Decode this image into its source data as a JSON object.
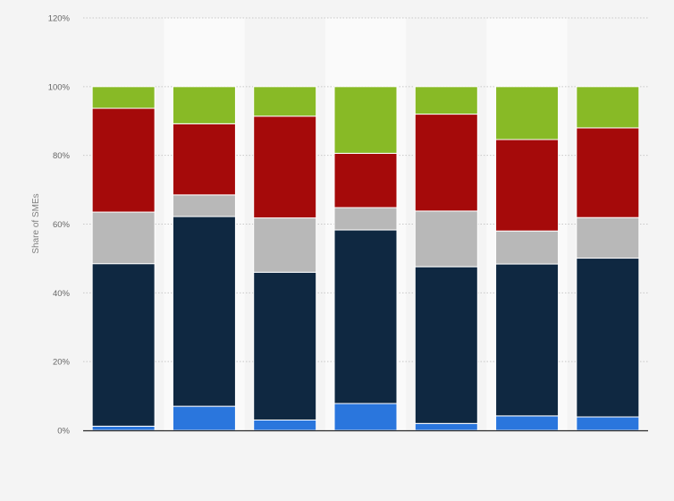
{
  "chart_data": {
    "type": "bar",
    "stacked": true,
    "title": "",
    "xlabel": "",
    "ylabel": "Share of SMEs",
    "ylim": [
      0,
      120
    ],
    "y_ticks": [
      "0%",
      "20%",
      "40%",
      "60%",
      "80%",
      "100%",
      "120%"
    ],
    "y_tick_values": [
      0,
      20,
      40,
      60,
      80,
      100,
      120
    ],
    "categories": [
      "",
      "",
      "",
      "",
      "",
      "",
      ""
    ],
    "grid": true,
    "legend": "none",
    "series": [
      {
        "color": "#2a76dd",
        "values": [
          1.2,
          7.0,
          3.0,
          7.8,
          2.0,
          4.2,
          3.9
        ]
      },
      {
        "color": "#0f2841",
        "values": [
          47.3,
          55.2,
          43.0,
          50.5,
          45.6,
          44.2,
          46.2
        ]
      },
      {
        "color": "#b8b8b8",
        "values": [
          15.0,
          6.3,
          15.8,
          6.5,
          16.2,
          9.6,
          11.8
        ]
      },
      {
        "color": "#a50a0a",
        "values": [
          30.2,
          20.7,
          29.6,
          15.8,
          28.2,
          26.6,
          26.1
        ]
      },
      {
        "color": "#88ba26",
        "values": [
          6.3,
          10.8,
          8.6,
          19.4,
          8.0,
          15.4,
          12.0
        ]
      }
    ]
  },
  "colors": {
    "background": "#f4f4f4",
    "band_light": "#fafafa",
    "grid": "#c8c8c8",
    "axis": "#2b2b2b"
  }
}
